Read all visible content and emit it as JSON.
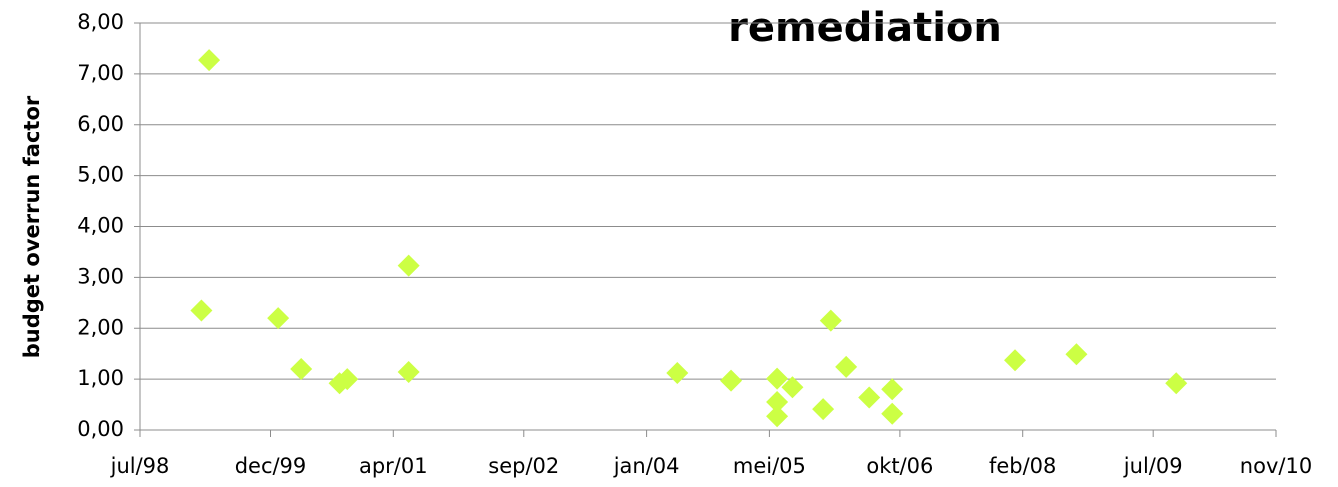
{
  "chart_data": {
    "type": "scatter",
    "title": "remediation",
    "y_label": "budget overrun factor",
    "color": "#ccff44",
    "grid": true,
    "x": [
      "1999-04",
      "1999-03",
      "2000-01",
      "2000-04",
      "2000-09",
      "2000-10",
      "2001-06",
      "2001-06",
      "2004-05",
      "2004-12",
      "2005-06",
      "2005-06",
      "2005-06",
      "2005-08",
      "2005-12",
      "2006-01",
      "2006-03",
      "2006-06",
      "2006-09",
      "2006-09",
      "2008-01",
      "2008-09",
      "2009-10"
    ],
    "values": [
      7.27,
      2.35,
      2.2,
      1.2,
      0.92,
      1.0,
      3.23,
      1.14,
      1.12,
      0.97,
      1.01,
      0.55,
      0.27,
      0.84,
      0.41,
      2.15,
      1.24,
      0.64,
      0.8,
      0.32,
      1.37,
      1.49,
      0.92
    ],
    "xlim": [
      "1998-07",
      "2010-11"
    ],
    "xticks": [
      {
        "value": "1998-07",
        "label": "jul/98"
      },
      {
        "value": "1999-12",
        "label": "dec/99"
      },
      {
        "value": "2001-04",
        "label": "apr/01"
      },
      {
        "value": "2002-09",
        "label": "sep/02"
      },
      {
        "value": "2004-01",
        "label": "jan/04"
      },
      {
        "value": "2005-05",
        "label": "mei/05"
      },
      {
        "value": "2006-10",
        "label": "okt/06"
      },
      {
        "value": "2008-02",
        "label": "feb/08"
      },
      {
        "value": "2009-07",
        "label": "jul/09"
      },
      {
        "value": "2010-11",
        "label": "nov/10"
      }
    ],
    "ylim": [
      0,
      8
    ],
    "yticks": [
      {
        "value": 0,
        "label": "0,00"
      },
      {
        "value": 1,
        "label": "1,00"
      },
      {
        "value": 2,
        "label": "2,00"
      },
      {
        "value": 3,
        "label": "3,00"
      },
      {
        "value": 4,
        "label": "4,00"
      },
      {
        "value": 5,
        "label": "5,00"
      },
      {
        "value": 6,
        "label": "6,00"
      },
      {
        "value": 7,
        "label": "7,00"
      },
      {
        "value": 8,
        "label": "8,00"
      }
    ]
  }
}
